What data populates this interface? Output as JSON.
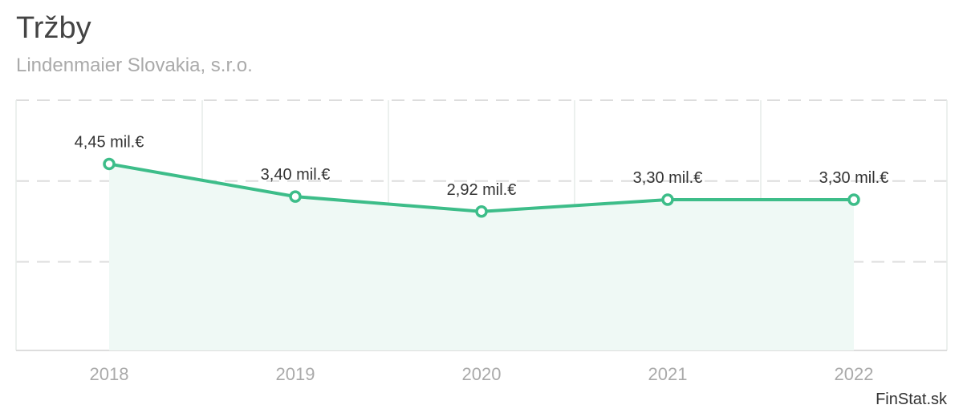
{
  "header": {
    "title": "Tržby",
    "subtitle": "Lindenmaier Slovakia, s.r.o."
  },
  "credit": "FinStat.sk",
  "colors": {
    "line": "#3dbd89",
    "area": "#eff9f5",
    "grid": "#dddddd",
    "text": "#333333",
    "muted": "#aaaaaa"
  },
  "chart_data": {
    "type": "area",
    "categories": [
      "2018",
      "2019",
      "2020",
      "2021",
      "2022"
    ],
    "series": [
      {
        "values": [
          4.45,
          3.4,
          2.92,
          3.3,
          3.3
        ],
        "labels": [
          "4,45 mil.€",
          "3,40 mil.€",
          "2,92 mil.€",
          "3,30 mil.€",
          "3,30 mil.€"
        ]
      }
    ],
    "ylim": [
      -1.55,
      6.5
    ],
    "grid": true
  }
}
